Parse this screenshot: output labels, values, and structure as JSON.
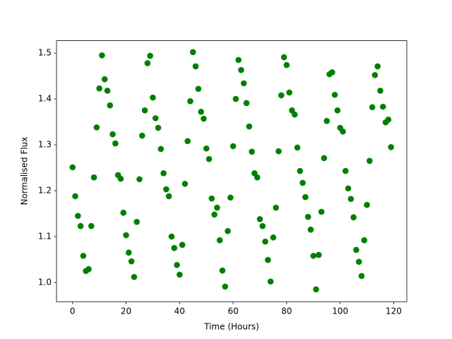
{
  "chart_data": {
    "type": "scatter",
    "xlabel": "Time (Hours)",
    "ylabel": "Normalised Flux",
    "x": [
      0,
      1,
      2,
      3,
      4,
      5,
      6,
      7,
      8,
      9,
      10,
      11,
      12,
      13,
      14,
      15,
      16,
      17,
      18,
      19,
      20,
      21,
      22,
      23,
      24,
      25,
      26,
      27,
      28,
      29,
      30,
      31,
      32,
      33,
      34,
      35,
      36,
      37,
      38,
      39,
      40,
      41,
      42,
      43,
      44,
      45,
      46,
      47,
      48,
      49,
      50,
      51,
      52,
      53,
      54,
      55,
      56,
      57,
      58,
      59,
      60,
      61,
      62,
      63,
      64,
      65,
      66,
      67,
      68,
      69,
      70,
      71,
      72,
      73,
      74,
      75,
      76,
      77,
      78,
      79,
      80,
      81,
      82,
      83,
      84,
      85,
      86,
      87,
      88,
      89,
      90,
      91,
      92,
      93,
      94,
      95,
      96,
      97,
      98,
      99,
      100,
      101,
      102,
      103,
      104,
      105,
      106,
      107,
      108,
      109,
      110,
      111,
      112,
      113,
      114,
      115,
      116,
      117,
      118,
      119
    ],
    "series": [
      {
        "name": "flux",
        "color": "#008000",
        "values": [
          1.251,
          1.188,
          1.145,
          1.123,
          1.058,
          1.025,
          1.029,
          1.123,
          1.229,
          1.338,
          1.423,
          1.495,
          1.443,
          1.418,
          1.386,
          1.323,
          1.303,
          1.234,
          1.226,
          1.152,
          1.103,
          1.065,
          1.046,
          1.012,
          1.132,
          1.225,
          1.32,
          1.375,
          1.478,
          1.494,
          1.403,
          1.358,
          1.337,
          1.291,
          1.238,
          1.203,
          1.188,
          1.1,
          1.075,
          1.038,
          1.017,
          1.082,
          1.215,
          1.308,
          1.395,
          1.502,
          1.471,
          1.422,
          1.372,
          1.357,
          1.292,
          1.269,
          1.183,
          1.148,
          1.163,
          1.092,
          1.026,
          0.991,
          1.112,
          1.185,
          1.297,
          1.4,
          1.485,
          1.463,
          1.434,
          1.391,
          1.34,
          1.285,
          1.238,
          1.229,
          1.138,
          1.123,
          1.089,
          1.049,
          1.002,
          1.098,
          1.163,
          1.286,
          1.408,
          1.491,
          1.474,
          1.414,
          1.375,
          1.366,
          1.294,
          1.243,
          1.217,
          1.186,
          1.143,
          1.115,
          1.058,
          0.985,
          1.06,
          1.154,
          1.271,
          1.352,
          1.454,
          1.458,
          1.409,
          1.375,
          1.337,
          1.329,
          1.243,
          1.205,
          1.182,
          1.142,
          1.071,
          1.045,
          1.014,
          1.092,
          1.169,
          1.265,
          1.382,
          1.452,
          1.471,
          1.418,
          1.383,
          1.349,
          1.355,
          1.295
        ]
      }
    ],
    "xlim": [
      -6,
      124.9
    ],
    "ylim": [
      0.958,
      1.527
    ],
    "xticks": [
      0,
      20,
      40,
      60,
      80,
      100,
      120
    ],
    "yticks": [
      {
        "value": 1,
        "label": "1.0"
      },
      1.1,
      1.2,
      1.3,
      1.4,
      1.5
    ]
  }
}
